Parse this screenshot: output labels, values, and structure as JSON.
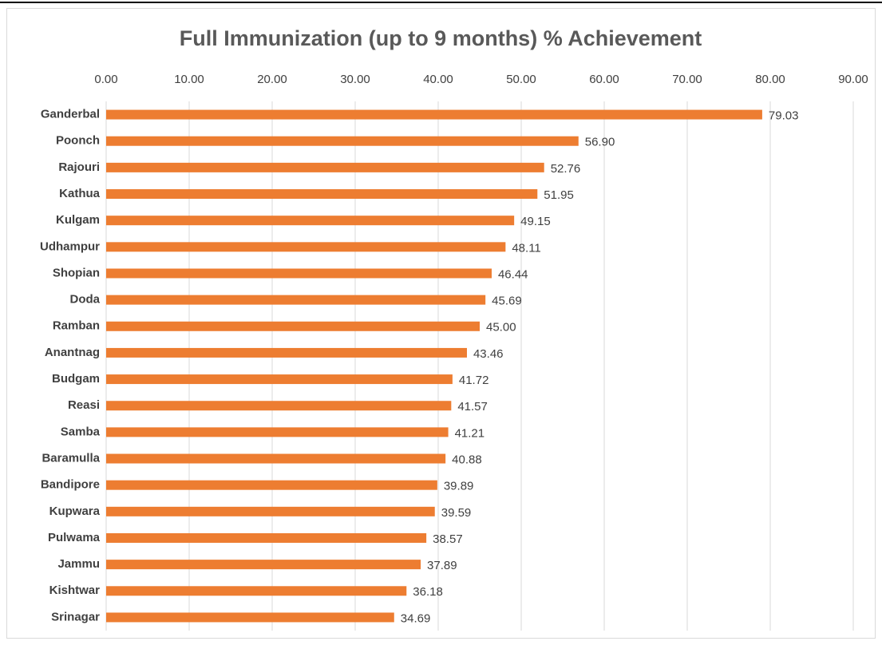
{
  "chart_data": {
    "type": "bar",
    "orientation": "horizontal",
    "title": "Full Immunization (up to 9 months) % Achievement",
    "categories": [
      "Ganderbal",
      "Poonch",
      "Rajouri",
      "Kathua",
      "Kulgam",
      "Udhampur",
      "Shopian",
      "Doda",
      "Ramban",
      "Anantnag",
      "Budgam",
      "Reasi",
      "Samba",
      "Baramulla",
      "Bandipore",
      "Kupwara",
      "Pulwama",
      "Jammu",
      "Kishtwar",
      "Srinagar"
    ],
    "values": [
      79.03,
      56.9,
      52.76,
      51.95,
      49.15,
      48.11,
      46.44,
      45.69,
      45,
      43.46,
      41.72,
      41.57,
      41.21,
      40.88,
      39.89,
      39.59,
      38.57,
      37.89,
      36.18,
      34.69
    ],
    "value_labels": [
      "79.03",
      "56.90",
      "52.76",
      "51.95",
      "49.15",
      "48.11",
      "46.44",
      "45.69",
      "45.00",
      "43.46",
      "41.72",
      "41.57",
      "41.21",
      "40.88",
      "39.89",
      "39.59",
      "38.57",
      "37.89",
      "36.18",
      "34.69"
    ],
    "color": "#ed7d31",
    "xlim": [
      0,
      90
    ],
    "xticks": [
      {
        "value": 0,
        "label": "0.00"
      },
      {
        "value": 10,
        "label": "10.00"
      },
      {
        "value": 20,
        "label": "20.00"
      },
      {
        "value": 30,
        "label": "30.00"
      },
      {
        "value": 40,
        "label": "40.00"
      },
      {
        "value": 50,
        "label": "50.00"
      },
      {
        "value": 60,
        "label": "60.00"
      },
      {
        "value": 70,
        "label": "70.00"
      },
      {
        "value": 80,
        "label": "80.00"
      },
      {
        "value": 90,
        "label": "90.00"
      }
    ],
    "grid": true
  }
}
